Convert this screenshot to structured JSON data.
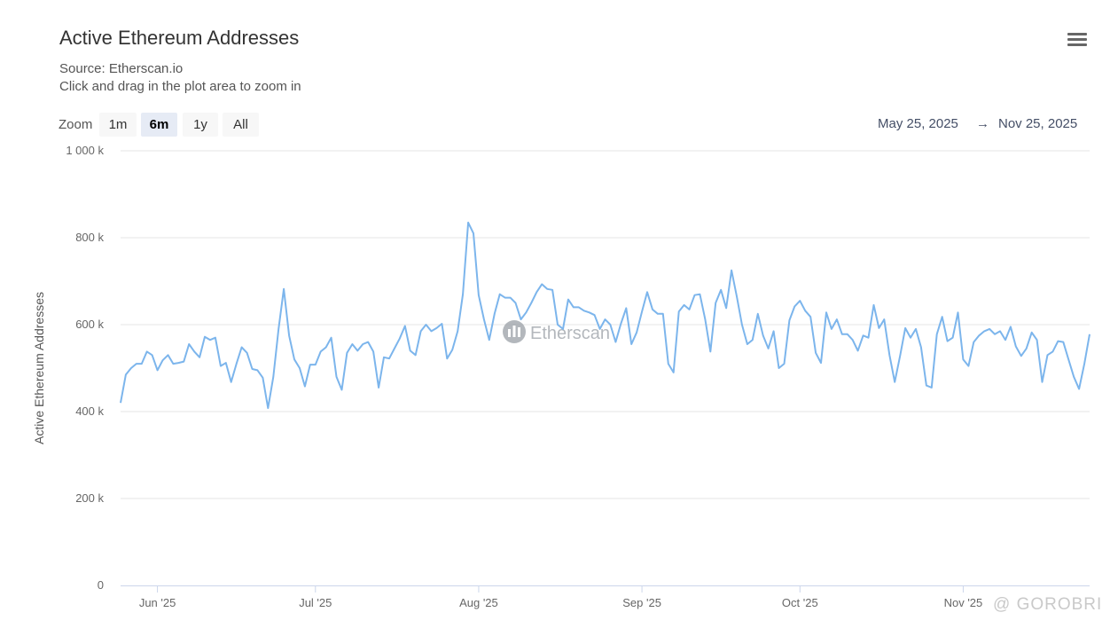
{
  "header": {
    "title": "Active Ethereum Addresses",
    "source": "Source: Etherscan.io",
    "hint": "Click and drag in the plot area to zoom in"
  },
  "zoom": {
    "label": "Zoom",
    "buttons": [
      "1m",
      "6m",
      "1y",
      "All"
    ],
    "selected": "6m"
  },
  "range": {
    "from": "May 25, 2025",
    "arrow": "→",
    "to": "Nov 25, 2025"
  },
  "watermark": "Etherscan",
  "credit": "@ GOROBRI",
  "colors": {
    "line": "#7cb5ec",
    "grid": "#e6e6e6",
    "axis": "#ccd6eb"
  },
  "chart_data": {
    "type": "line",
    "title": "Active Ethereum Addresses",
    "subtitle": "Source: Etherscan.io",
    "xlabel": "",
    "ylabel": "Active Ethereum Addresses",
    "ylim": [
      0,
      1000000
    ],
    "yticks": [
      {
        "value": 0,
        "label": "0"
      },
      {
        "value": 200000,
        "label": "200 k"
      },
      {
        "value": 400000,
        "label": "400 k"
      },
      {
        "value": 600000,
        "label": "600 k"
      },
      {
        "value": 800000,
        "label": "800 k"
      },
      {
        "value": 1000000,
        "label": "1 000 k"
      }
    ],
    "xticks": [
      {
        "day": 7,
        "label": "Jun '25"
      },
      {
        "day": 37,
        "label": "Jul '25"
      },
      {
        "day": 68,
        "label": "Aug '25"
      },
      {
        "day": 99,
        "label": "Sep '25"
      },
      {
        "day": 129,
        "label": "Oct '25"
      },
      {
        "day": 160,
        "label": "Nov '25"
      }
    ],
    "x_unit": "days since May 25, 2025",
    "xlim": [
      0,
      184
    ],
    "series": [
      {
        "name": "Active Ethereum Addresses",
        "values": [
          420000,
          485000,
          500000,
          510000,
          510000,
          538000,
          530000,
          495000,
          518000,
          530000,
          510000,
          512000,
          515000,
          555000,
          538000,
          525000,
          572000,
          565000,
          570000,
          505000,
          512000,
          468000,
          510000,
          548000,
          535000,
          498000,
          495000,
          478000,
          408000,
          480000,
          590000,
          682000,
          575000,
          520000,
          500000,
          458000,
          508000,
          508000,
          538000,
          548000,
          570000,
          480000,
          450000,
          535000,
          555000,
          540000,
          555000,
          560000,
          538000,
          455000,
          525000,
          522000,
          545000,
          568000,
          597000,
          540000,
          530000,
          585000,
          600000,
          585000,
          592000,
          602000,
          522000,
          542000,
          585000,
          670000,
          835000,
          810000,
          668000,
          612000,
          565000,
          625000,
          670000,
          662000,
          662000,
          650000,
          612000,
          628000,
          650000,
          675000,
          693000,
          682000,
          680000,
          600000,
          590000,
          658000,
          640000,
          640000,
          632000,
          628000,
          622000,
          590000,
          612000,
          600000,
          560000,
          602000,
          638000,
          555000,
          582000,
          630000,
          675000,
          635000,
          625000,
          625000,
          510000,
          490000,
          630000,
          645000,
          635000,
          668000,
          670000,
          612000,
          538000,
          650000,
          680000,
          638000,
          725000,
          665000,
          600000,
          555000,
          565000,
          625000,
          575000,
          545000,
          585000,
          500000,
          510000,
          610000,
          642000,
          655000,
          632000,
          618000,
          535000,
          512000,
          628000,
          590000,
          612000,
          578000,
          578000,
          565000,
          540000,
          575000,
          570000,
          645000,
          592000,
          612000,
          530000,
          468000,
          528000,
          592000,
          570000,
          590000,
          548000,
          460000,
          455000,
          578000,
          618000,
          562000,
          570000,
          628000,
          520000,
          505000,
          560000,
          575000,
          585000,
          590000,
          578000,
          585000,
          565000,
          595000,
          550000,
          528000,
          545000,
          582000,
          565000,
          468000,
          530000,
          538000,
          562000,
          560000,
          520000,
          480000,
          452000,
          510000,
          578000
        ]
      }
    ]
  }
}
